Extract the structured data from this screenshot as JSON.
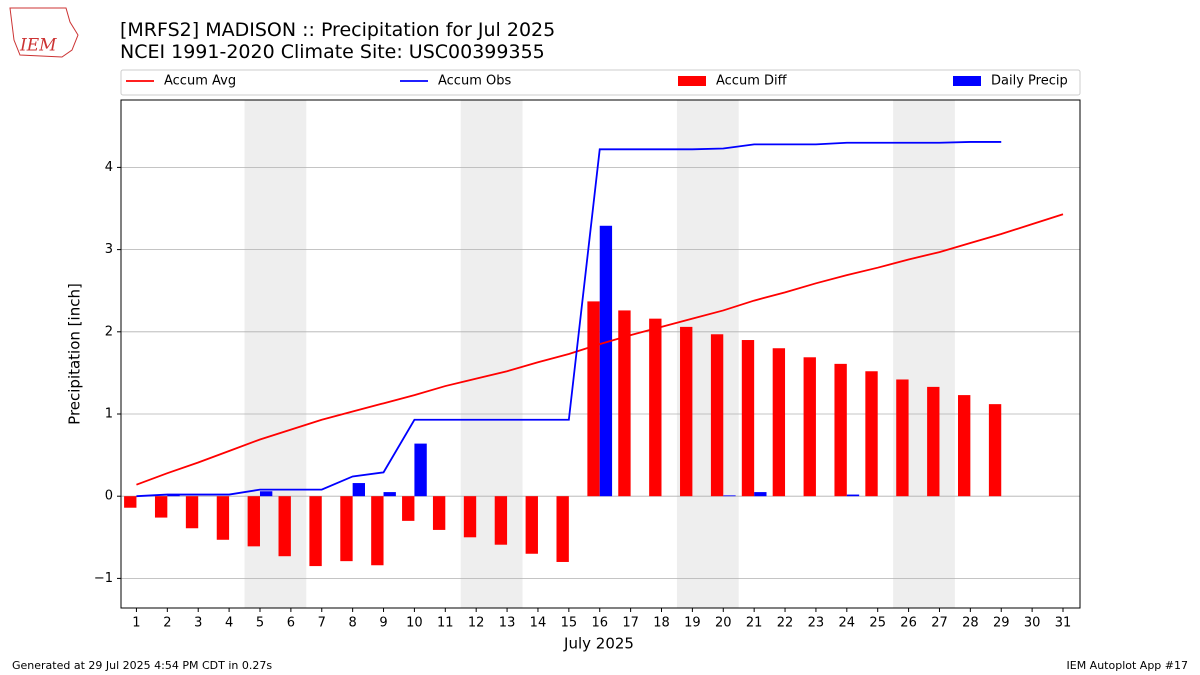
{
  "logo_text": "IEM",
  "chart_data": {
    "type": "bar_line",
    "title": "[MRFS2] MADISON :: Precipitation for Jul 2025",
    "subtitle": "NCEI 1991-2020 Climate Site: USC00399355",
    "xlabel": "July 2025",
    "ylabel": "Precipitation [inch]",
    "footer_left": "Generated at 29 Jul 2025 4:54 PM CDT in 0.27s",
    "footer_right": "IEM Autoplot App #17",
    "x": [
      1,
      2,
      3,
      4,
      5,
      6,
      7,
      8,
      9,
      10,
      11,
      12,
      13,
      14,
      15,
      16,
      17,
      18,
      19,
      20,
      21,
      22,
      23,
      24,
      25,
      26,
      27,
      28,
      29,
      30,
      31
    ],
    "xlim": [
      0.5,
      31.55
    ],
    "xticks": [
      1,
      2,
      3,
      4,
      5,
      6,
      7,
      8,
      9,
      10,
      11,
      12,
      13,
      14,
      15,
      16,
      17,
      18,
      19,
      20,
      21,
      22,
      23,
      24,
      25,
      26,
      27,
      28,
      29,
      30,
      31
    ],
    "ylim": [
      -1.36,
      4.82
    ],
    "yticks": [
      {
        "value": -1,
        "label": "−1"
      },
      0,
      1,
      2,
      3,
      4
    ],
    "grid": true,
    "shaded_spans": [
      [
        4.5,
        6.5
      ],
      [
        11.5,
        13.5
      ],
      [
        18.5,
        20.5
      ],
      [
        25.5,
        27.5
      ]
    ],
    "shade_color": "#eeeeee",
    "series": [
      {
        "name": "Accum Avg",
        "kind": "line",
        "color": "#ff0000",
        "values": [
          0.14,
          0.28,
          0.41,
          0.55,
          0.69,
          0.81,
          0.93,
          1.03,
          1.13,
          1.23,
          1.34,
          1.43,
          1.52,
          1.63,
          1.73,
          1.85,
          1.96,
          2.06,
          2.16,
          2.26,
          2.38,
          2.48,
          2.59,
          2.69,
          2.78,
          2.88,
          2.97,
          3.08,
          3.19,
          3.31,
          3.43
        ]
      },
      {
        "name": "Accum Obs",
        "kind": "line",
        "color": "#0000ff",
        "values": [
          0.0,
          0.02,
          0.02,
          0.02,
          0.08,
          0.08,
          0.08,
          0.24,
          0.29,
          0.93,
          0.93,
          0.93,
          0.93,
          0.93,
          0.93,
          4.22,
          4.22,
          4.22,
          4.22,
          4.23,
          4.28,
          4.28,
          4.28,
          4.3,
          4.3,
          4.3,
          4.3,
          4.31,
          4.31,
          null,
          null
        ]
      },
      {
        "name": "Accum Diff",
        "kind": "bar",
        "color": "#ff0000",
        "values": [
          -0.14,
          -0.26,
          -0.39,
          -0.53,
          -0.61,
          -0.73,
          -0.85,
          -0.79,
          -0.84,
          -0.3,
          -0.41,
          -0.5,
          -0.59,
          -0.7,
          -0.8,
          2.37,
          2.26,
          2.16,
          2.06,
          1.97,
          1.9,
          1.8,
          1.69,
          1.61,
          1.52,
          1.42,
          1.33,
          1.23,
          1.12,
          null,
          null
        ]
      },
      {
        "name": "Daily Precip",
        "kind": "bar",
        "color": "#0000ff",
        "values": [
          0,
          0.02,
          0,
          0,
          0.06,
          0,
          0,
          0.16,
          0.05,
          0.64,
          0,
          0,
          0,
          0,
          0,
          3.29,
          0,
          0,
          0,
          0.01,
          0.05,
          0,
          0,
          0.02,
          0,
          0,
          0,
          0,
          0,
          null,
          null
        ]
      }
    ]
  }
}
